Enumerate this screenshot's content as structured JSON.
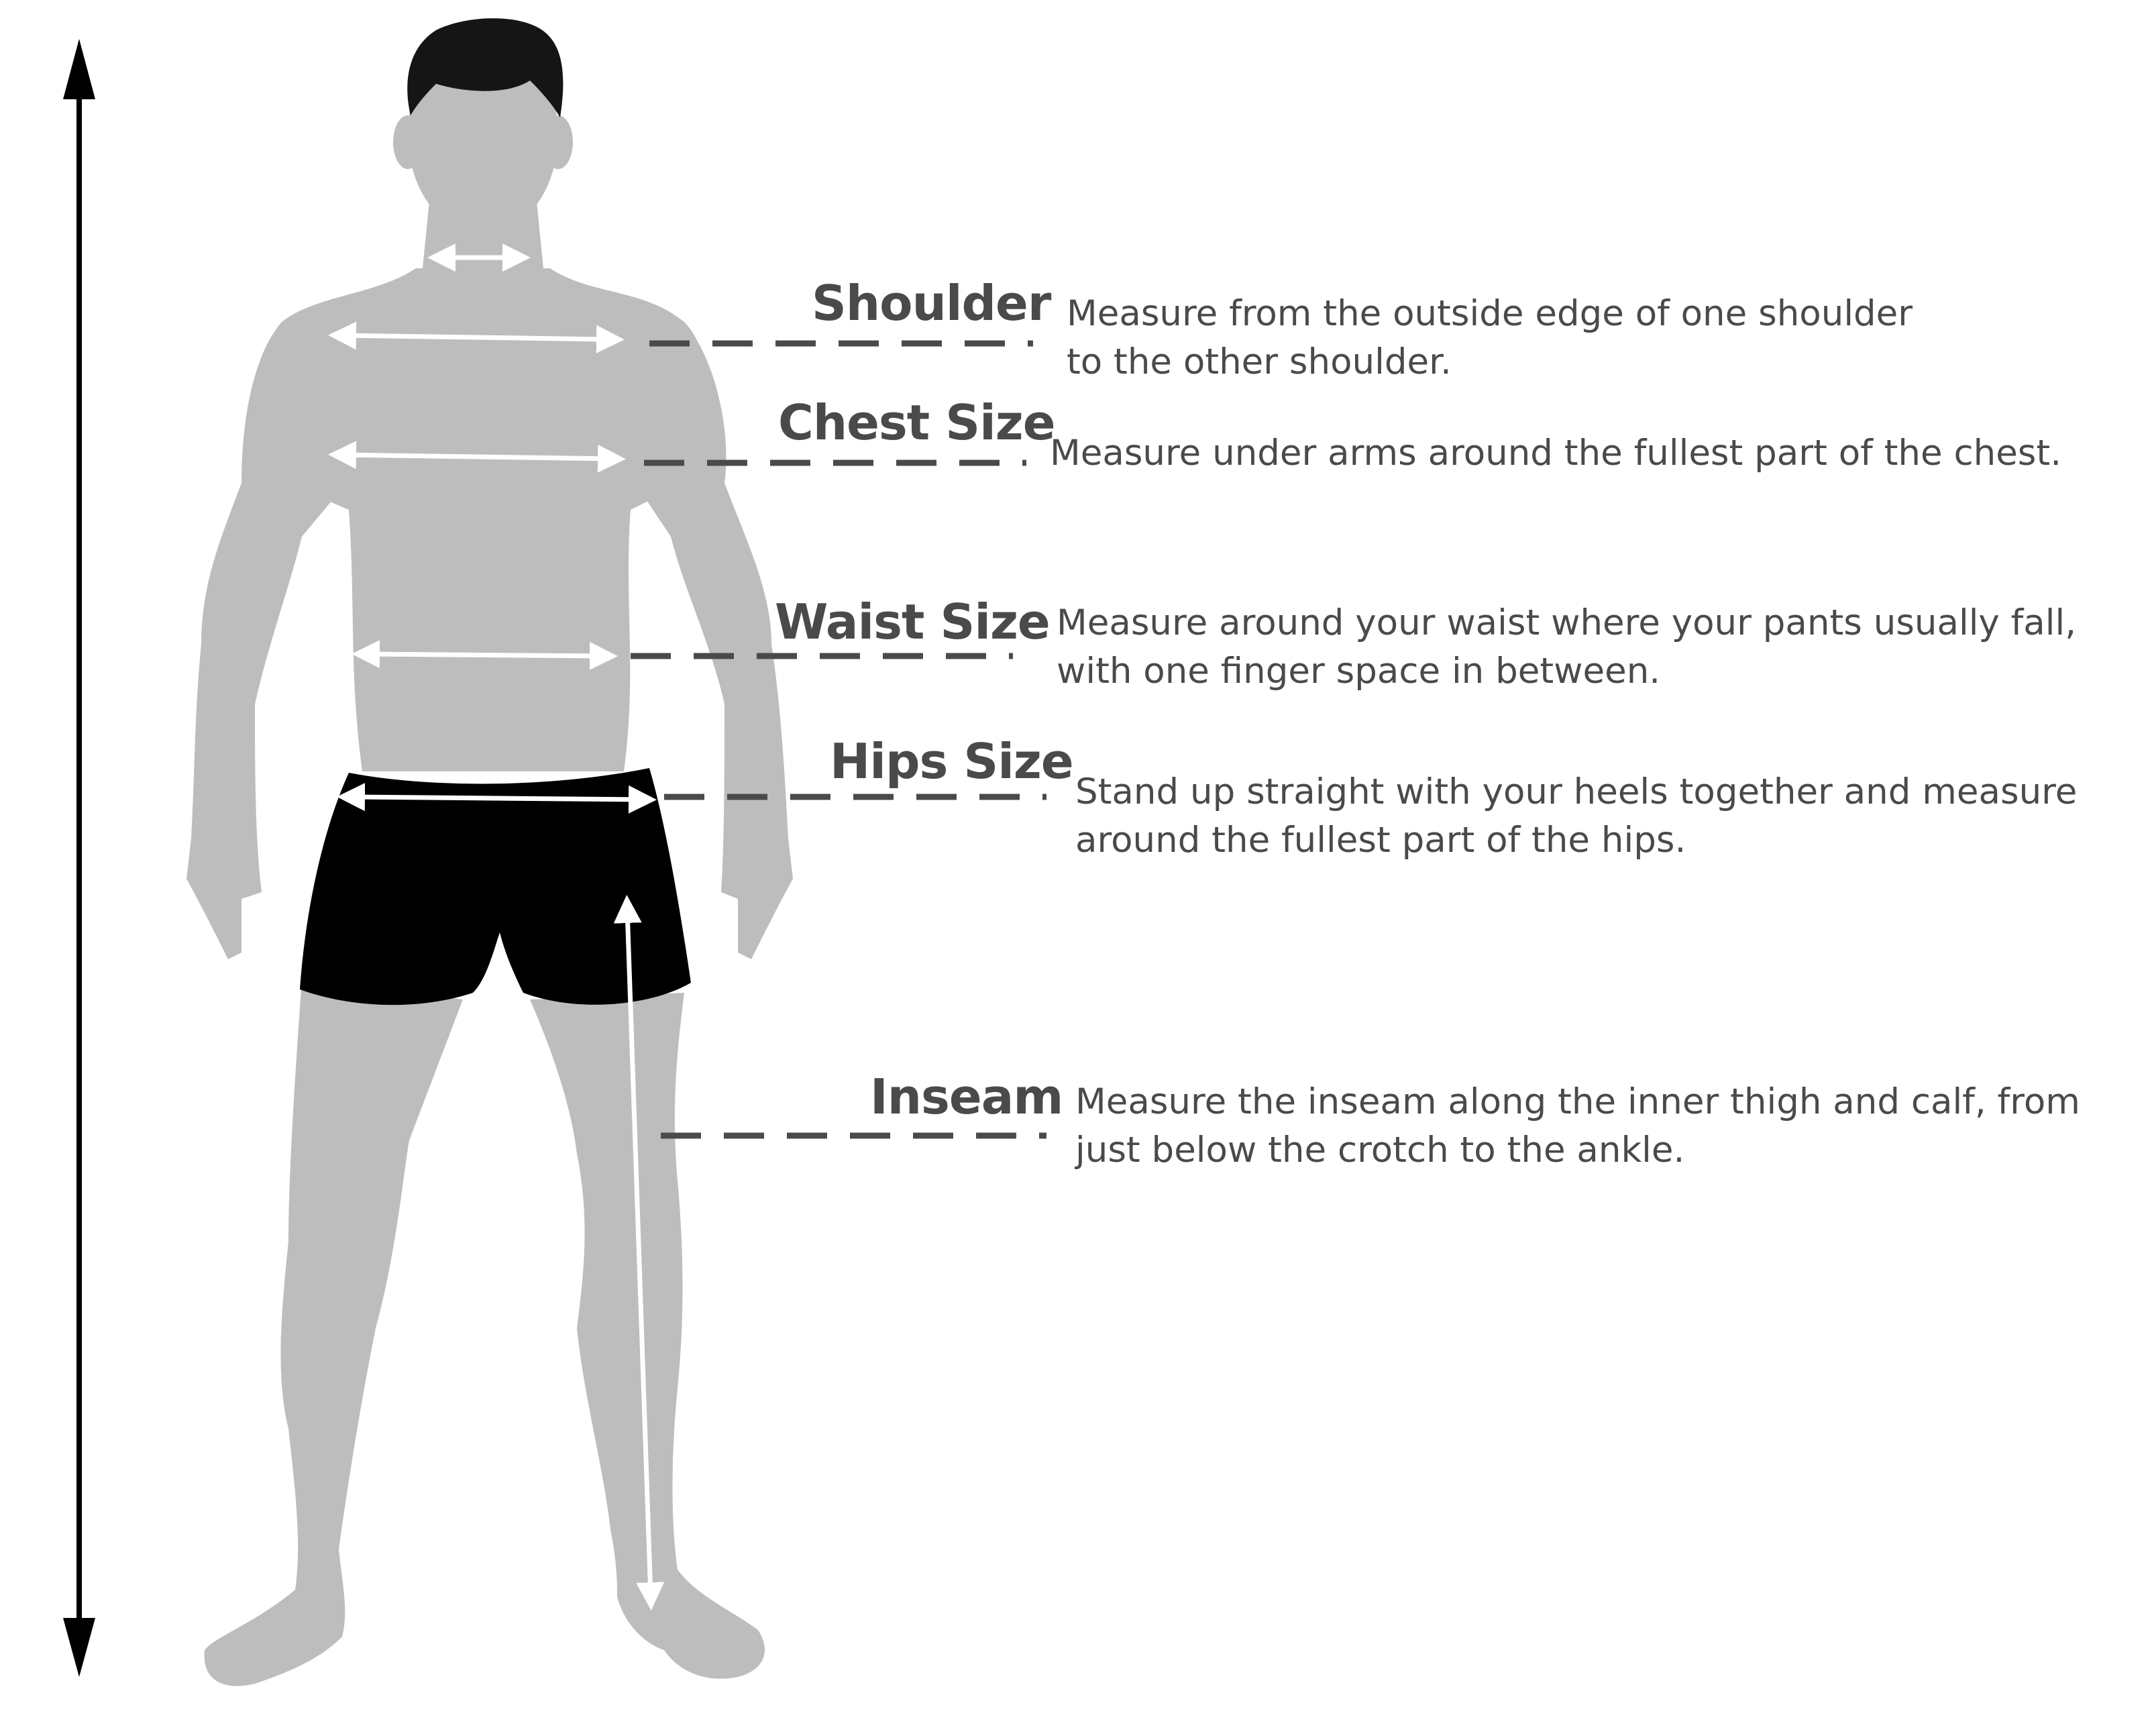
{
  "colors": {
    "body": "#bdbdbd",
    "shorts": "#000000",
    "hair": "#151515",
    "guide_line": "#4a4a4a",
    "measure_arrow": "#ffffff",
    "height_arrow": "#000000",
    "text": "#4a4a4a"
  },
  "measurements": [
    {
      "key": "shoulder",
      "title": "Shoulder",
      "lines": [
        "Measure from the outside edge of one shoulder",
        "to the other shoulder."
      ]
    },
    {
      "key": "chest",
      "title": "Chest Size",
      "lines": [
        "Measure under arms around the fullest part of the chest."
      ]
    },
    {
      "key": "waist",
      "title": "Waist Size",
      "lines": [
        "Measure around your waist where your pants usually fall,",
        "with one finger space in between."
      ]
    },
    {
      "key": "hips",
      "title": "Hips Size",
      "lines": [
        "Stand up straight with your heels together and measure",
        "around the fullest part of the hips."
      ]
    },
    {
      "key": "inseam",
      "title": "Inseam",
      "lines": [
        "Measure the inseam along the inner thigh and calf, from",
        "just below the crotch to the ankle."
      ]
    }
  ]
}
